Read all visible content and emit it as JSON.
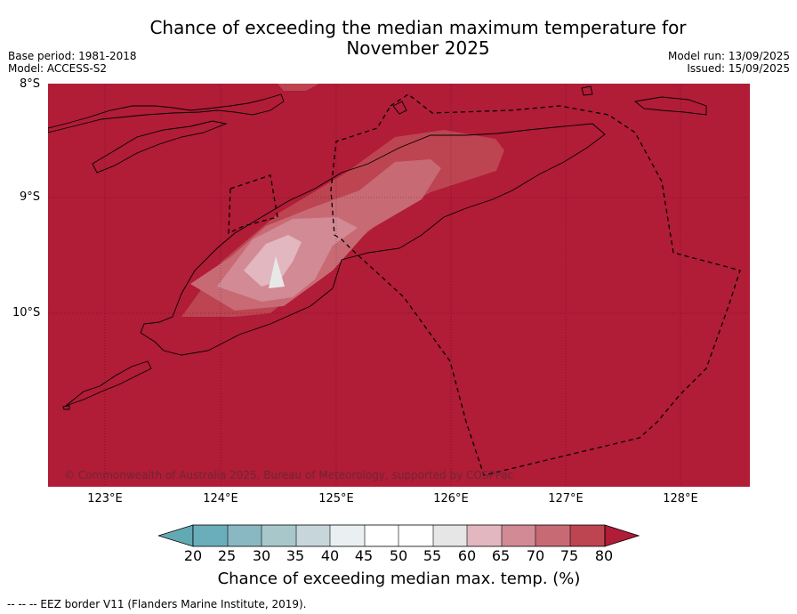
{
  "title": {
    "line1": "Chance of exceeding the median maximum temperature for",
    "line2": "November 2025"
  },
  "meta": {
    "base_period": "Base period: 1981-2018",
    "model": "Model: ACCESS-S2",
    "model_run": "Model run: 13/09/2025",
    "issued": "Issued: 15/09/2025"
  },
  "map": {
    "latitude_labels": [
      "8°S",
      "9°S",
      "10°S"
    ],
    "longitude_labels": [
      "123°E",
      "124°E",
      "125°E",
      "126°E",
      "127°E",
      "128°E"
    ],
    "copyright": "© Commonwealth of Australia 2025, Bureau of Meteorology, supported by COSPPac",
    "background_color": "#b11c37",
    "land_outline_color": "#000000"
  },
  "colorbar": {
    "ticks": [
      "20",
      "25",
      "30",
      "35",
      "40",
      "45",
      "50",
      "55",
      "60",
      "65",
      "70",
      "75",
      "80"
    ],
    "colors": [
      "#63a9b4",
      "#6aaebb",
      "#8ab8c2",
      "#a8c7cb",
      "#c6d6da",
      "#eaf0f1",
      "#ffffff",
      "#ffffff",
      "#e6e6e6",
      "#e2b7bf",
      "#d28a95",
      "#c86a74",
      "#bd4451",
      "#b11c37"
    ],
    "label": "Chance of exceeding median max. temp. (%)"
  },
  "footnote": "--  --  -- EEZ border V11 (Flanders Marine Institute, 2019)."
}
